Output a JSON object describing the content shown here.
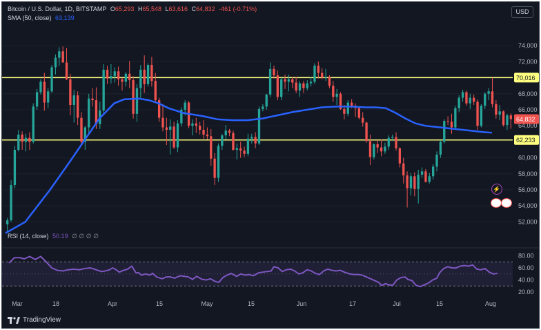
{
  "header": {
    "symbol": "Bitcoin / U.S. Dollar, 1D, BITSTAMP",
    "o_label": "O",
    "o_val": "65,293",
    "h_label": "H",
    "h_val": "65,548",
    "l_label": "L",
    "l_val": "63,616",
    "c_label": "C",
    "c_val": "64,832",
    "change": "-461 (-0.71%)",
    "sma_label": "SMA (50, close)",
    "sma_val": "63,139"
  },
  "currency": "USD",
  "rsi_header": {
    "label": "RSI (14, close)",
    "value": "50.19",
    "extra": "∅ ∅ ∅ ∅"
  },
  "brand": "TradingView",
  "colors": {
    "up": "#26a69a",
    "down": "#ef5350",
    "sma": "#2962ff",
    "rsi": "#7e57c2",
    "level": "#ffff7f",
    "bg": "#131722"
  },
  "chart_data": {
    "type": "candlestick",
    "ylim": [
      51000,
      76000
    ],
    "y_ticks": [
      "52,000",
      "54,000",
      "56,000",
      "58,000",
      "60,000",
      "62,000",
      "64,000",
      "66,000",
      "68,000",
      "70,000",
      "72,000",
      "74,000"
    ],
    "x_tick_labels": [
      "Mar",
      "18",
      "Apr",
      "15",
      "May",
      "15",
      "Jun",
      "17",
      "Jul",
      "15",
      "Aug"
    ],
    "hlines": [
      {
        "value": 70016,
        "label": "70,016"
      },
      {
        "value": 62233,
        "label": "62,233"
      }
    ],
    "last_price_label": "64,832",
    "candles": [
      [
        51700,
        52500,
        50800,
        52200
      ],
      [
        52200,
        57200,
        52000,
        56600
      ],
      [
        56600,
        61500,
        56200,
        61000
      ],
      [
        61000,
        63500,
        60800,
        62900
      ],
      [
        62900,
        63300,
        61000,
        62000
      ],
      [
        62000,
        63000,
        60800,
        62500
      ],
      [
        62500,
        63200,
        61000,
        62000
      ],
      [
        62000,
        66800,
        61800,
        66400
      ],
      [
        66400,
        68600,
        66000,
        68200
      ],
      [
        68200,
        69800,
        67900,
        69500
      ],
      [
        69500,
        70600,
        65900,
        66900
      ],
      [
        66900,
        68700,
        66200,
        68300
      ],
      [
        68300,
        71600,
        68100,
        71300
      ],
      [
        71300,
        72900,
        70400,
        72500
      ],
      [
        72500,
        73800,
        71500,
        73300
      ],
      [
        73300,
        73900,
        71900,
        71900
      ],
      [
        71900,
        73700,
        69700,
        69800
      ],
      [
        69800,
        70500,
        65300,
        66600
      ],
      [
        66600,
        68500,
        64400,
        67800
      ],
      [
        67800,
        68300,
        64100,
        65000
      ],
      [
        65000,
        65700,
        61500,
        62000
      ],
      [
        62000,
        64000,
        61000,
        63800
      ],
      [
        63800,
        68000,
        62900,
        67400
      ],
      [
        67400,
        68700,
        66400,
        67200
      ],
      [
        67200,
        68800,
        63600,
        64200
      ],
      [
        64200,
        67000,
        63600,
        65900
      ],
      [
        65900,
        71700,
        65500,
        71000
      ],
      [
        71000,
        71500,
        69200,
        69900
      ],
      [
        69900,
        71700,
        69300,
        70200
      ],
      [
        70200,
        71300,
        69400,
        70800
      ],
      [
        70800,
        71400,
        69000,
        69800
      ],
      [
        69800,
        70000,
        68400,
        69500
      ],
      [
        69500,
        70700,
        68900,
        70500
      ],
      [
        70500,
        72100,
        68700,
        69700
      ],
      [
        69700,
        70200,
        64900,
        65500
      ],
      [
        65500,
        69200,
        64500,
        68700
      ],
      [
        68700,
        71600,
        67500,
        71000
      ],
      [
        71000,
        72800,
        68100,
        69200
      ],
      [
        69200,
        71800,
        68900,
        71600
      ],
      [
        71600,
        72600,
        68900,
        69600
      ],
      [
        69600,
        70600,
        66900,
        67200
      ],
      [
        67200,
        67500,
        64500,
        65000
      ],
      [
        65000,
        66700,
        63300,
        63800
      ],
      [
        63800,
        65000,
        61600,
        63500
      ],
      [
        63500,
        64800,
        60400,
        63900
      ],
      [
        63900,
        64500,
        61100,
        61300
      ],
      [
        61300,
        64700,
        60700,
        64300
      ],
      [
        64300,
        66300,
        63900,
        66000
      ],
      [
        66000,
        67200,
        65300,
        66900
      ],
      [
        66900,
        67100,
        63700,
        64000
      ],
      [
        64000,
        64800,
        62800,
        64300
      ],
      [
        64300,
        65000,
        63100,
        64000
      ],
      [
        64000,
        64500,
        62900,
        63500
      ],
      [
        63500,
        64700,
        62400,
        62900
      ],
      [
        62900,
        63800,
        62300,
        62700
      ],
      [
        62700,
        63600,
        59000,
        59900
      ],
      [
        59900,
        60600,
        56600,
        57500
      ],
      [
        57500,
        61800,
        57000,
        61500
      ],
      [
        61500,
        63000,
        61000,
        62800
      ],
      [
        62800,
        64100,
        62300,
        63400
      ],
      [
        63400,
        63600,
        62700,
        63100
      ],
      [
        63100,
        63400,
        60900,
        61000
      ],
      [
        61000,
        61800,
        59800,
        61200
      ],
      [
        61200,
        62000,
        60000,
        60900
      ],
      [
        60900,
        61400,
        60100,
        60500
      ],
      [
        60500,
        63000,
        60200,
        62400
      ],
      [
        62400,
        63000,
        61800,
        62600
      ],
      [
        62600,
        63200,
        61200,
        61800
      ],
      [
        61800,
        66400,
        61600,
        66100
      ],
      [
        66100,
        66700,
        65800,
        66400
      ],
      [
        66400,
        68000,
        66000,
        67900
      ],
      [
        67900,
        71900,
        67600,
        71100
      ],
      [
        71100,
        71500,
        69900,
        70300
      ],
      [
        70300,
        70900,
        67200,
        67600
      ],
      [
        67600,
        70000,
        67200,
        69800
      ],
      [
        69800,
        70400,
        68600,
        69500
      ],
      [
        69500,
        70400,
        68300,
        69800
      ],
      [
        69800,
        70100,
        68700,
        69400
      ],
      [
        69400,
        70100,
        68100,
        68400
      ],
      [
        68400,
        69600,
        67600,
        69300
      ],
      [
        69300,
        69600,
        68100,
        68700
      ],
      [
        68700,
        69700,
        68400,
        69300
      ],
      [
        69300,
        70100,
        68900,
        69500
      ],
      [
        69500,
        71800,
        69200,
        71500
      ],
      [
        71500,
        72000,
        69900,
        70600
      ],
      [
        70600,
        71200,
        69800,
        70000
      ],
      [
        70000,
        71100,
        69600,
        70100
      ],
      [
        70100,
        70300,
        68700,
        69000
      ],
      [
        69000,
        69600,
        67000,
        67600
      ],
      [
        67600,
        68600,
        66600,
        68000
      ],
      [
        68000,
        68200,
        66000,
        66100
      ],
      [
        66100,
        66600,
        64800,
        65500
      ],
      [
        65500,
        67200,
        65200,
        66900
      ],
      [
        66900,
        67300,
        66200,
        66500
      ],
      [
        66500,
        66800,
        65100,
        66200
      ],
      [
        66200,
        66400,
        64800,
        65000
      ],
      [
        65000,
        65700,
        63900,
        64400
      ],
      [
        64400,
        64500,
        61900,
        62100
      ],
      [
        62100,
        62900,
        59100,
        60100
      ],
      [
        60100,
        61800,
        59800,
        61700
      ],
      [
        61700,
        62200,
        60600,
        61300
      ],
      [
        61300,
        62300,
        60200,
        60800
      ],
      [
        60800,
        61900,
        60500,
        61400
      ],
      [
        61400,
        62800,
        61000,
        62500
      ],
      [
        62500,
        62900,
        62100,
        62600
      ],
      [
        62600,
        63200,
        60900,
        61200
      ],
      [
        61200,
        61300,
        58800,
        59300
      ],
      [
        59300,
        60000,
        56800,
        57800
      ],
      [
        57800,
        58300,
        53800,
        56200
      ],
      [
        56200,
        58100,
        55300,
        57700
      ],
      [
        57700,
        58200,
        55200,
        56100
      ],
      [
        56100,
        58500,
        54300,
        57900
      ],
      [
        57900,
        58800,
        57500,
        58300
      ],
      [
        58300,
        58600,
        56900,
        57000
      ],
      [
        57000,
        58100,
        56800,
        57700
      ],
      [
        57700,
        59200,
        57300,
        58900
      ],
      [
        58900,
        60800,
        58300,
        60400
      ],
      [
        60400,
        62200,
        60000,
        62000
      ],
      [
        62000,
        64800,
        61800,
        64600
      ],
      [
        64600,
        65200,
        64100,
        64500
      ],
      [
        64500,
        65500,
        63000,
        63800
      ],
      [
        63800,
        66500,
        63500,
        66200
      ],
      [
        66200,
        67800,
        65700,
        67500
      ],
      [
        67500,
        68500,
        67000,
        68200
      ],
      [
        68200,
        68400,
        66500,
        66800
      ],
      [
        66800,
        68000,
        66100,
        67500
      ],
      [
        67500,
        67900,
        66600,
        67000
      ],
      [
        67000,
        67300,
        63500,
        64000
      ],
      [
        64000,
        66700,
        63800,
        66500
      ],
      [
        66500,
        68200,
        66100,
        68000
      ],
      [
        68000,
        68700,
        67200,
        68300
      ],
      [
        68300,
        70000,
        66300,
        66700
      ],
      [
        66700,
        67200,
        64900,
        65400
      ],
      [
        65400,
        66600,
        64700,
        65800
      ],
      [
        65800,
        65900,
        63900,
        64100
      ],
      [
        64100,
        65500,
        63500,
        65300
      ],
      [
        65300,
        65548,
        63616,
        64832
      ]
    ],
    "sma": [
      [
        0,
        50600
      ],
      [
        8,
        52000
      ],
      [
        18,
        56000
      ],
      [
        26,
        59500
      ],
      [
        32,
        62200
      ],
      [
        38,
        64900
      ],
      [
        44,
        66800
      ],
      [
        48,
        67300
      ],
      [
        54,
        67400
      ],
      [
        58,
        67200
      ],
      [
        62,
        66800
      ],
      [
        66,
        66200
      ],
      [
        72,
        65600
      ],
      [
        80,
        65200
      ],
      [
        86,
        64800
      ],
      [
        92,
        64700
      ],
      [
        98,
        64700
      ],
      [
        104,
        64900
      ],
      [
        110,
        65300
      ],
      [
        116,
        65700
      ],
      [
        122,
        66000
      ],
      [
        128,
        66300
      ],
      [
        134,
        66400
      ],
      [
        140,
        66400
      ],
      [
        146,
        66300
      ],
      [
        150,
        66300
      ],
      [
        154,
        66200
      ],
      [
        158,
        65600
      ],
      [
        162,
        64900
      ],
      [
        166,
        64300
      ],
      [
        170,
        64000
      ],
      [
        176,
        63800
      ],
      [
        182,
        63600
      ],
      [
        188,
        63400
      ],
      [
        194,
        63200
      ],
      [
        197,
        63139
      ]
    ],
    "rsi": {
      "ylim": [
        20,
        83
      ],
      "y_ticks": [
        "80.00",
        "60.00",
        "40.00",
        "20.00"
      ],
      "bands": [
        70,
        30
      ],
      "values": [
        [
          0,
          68
        ],
        [
          8,
          77
        ],
        [
          16,
          77
        ],
        [
          22,
          75
        ],
        [
          30,
          79
        ],
        [
          38,
          74
        ],
        [
          46,
          79
        ],
        [
          54,
          70
        ],
        [
          62,
          60
        ],
        [
          70,
          56
        ],
        [
          78,
          55
        ],
        [
          86,
          57
        ],
        [
          94,
          58
        ],
        [
          102,
          57
        ],
        [
          110,
          59
        ],
        [
          118,
          60
        ],
        [
          126,
          57
        ],
        [
          134,
          54
        ],
        [
          140,
          55
        ],
        [
          146,
          57
        ],
        [
          150,
          60
        ],
        [
          154,
          58
        ],
        [
          160,
          53
        ],
        [
          166,
          56
        ],
        [
          172,
          58
        ],
        [
          178,
          63
        ],
        [
          184,
          52
        ],
        [
          188,
          52
        ],
        [
          192,
          48
        ],
        [
          198,
          50
        ],
        [
          204,
          48
        ],
        [
          208,
          51
        ],
        [
          214,
          45
        ],
        [
          222,
          42
        ],
        [
          228,
          45
        ],
        [
          234,
          45
        ],
        [
          240,
          43
        ],
        [
          248,
          47
        ],
        [
          254,
          46
        ],
        [
          260,
          45
        ],
        [
          266,
          41
        ],
        [
          272,
          46
        ],
        [
          280,
          41
        ],
        [
          286,
          40
        ],
        [
          292,
          42
        ],
        [
          298,
          38
        ],
        [
          304,
          36
        ],
        [
          310,
          44
        ],
        [
          316,
          48
        ],
        [
          322,
          51
        ],
        [
          330,
          46
        ],
        [
          336,
          50
        ],
        [
          342,
          48
        ],
        [
          348,
          49
        ],
        [
          354,
          47
        ],
        [
          362,
          52
        ],
        [
          368,
          53
        ],
        [
          374,
          54
        ],
        [
          380,
          55
        ],
        [
          384,
          62
        ],
        [
          390,
          60
        ],
        [
          396,
          54
        ],
        [
          402,
          57
        ],
        [
          408,
          58
        ],
        [
          414,
          55
        ],
        [
          420,
          50
        ],
        [
          426,
          52
        ],
        [
          432,
          57
        ],
        [
          438,
          55
        ],
        [
          444,
          51
        ],
        [
          450,
          49
        ],
        [
          456,
          55
        ],
        [
          462,
          58
        ],
        [
          468,
          56
        ],
        [
          474,
          55
        ],
        [
          480,
          56
        ],
        [
          486,
          53
        ],
        [
          494,
          50
        ],
        [
          500,
          49
        ],
        [
          506,
          49
        ],
        [
          512,
          48
        ],
        [
          518,
          45
        ],
        [
          524,
          42
        ],
        [
          530,
          39
        ],
        [
          536,
          36
        ],
        [
          540,
          31
        ],
        [
          546,
          34
        ],
        [
          550,
          32
        ],
        [
          556,
          31
        ],
        [
          562,
          40
        ],
        [
          568,
          44
        ],
        [
          574,
          45
        ],
        [
          578,
          41
        ],
        [
          584,
          39
        ],
        [
          590,
          31
        ],
        [
          596,
          29
        ],
        [
          602,
          32
        ],
        [
          608,
          35
        ],
        [
          614,
          40
        ],
        [
          620,
          43
        ],
        [
          624,
          52
        ],
        [
          630,
          59
        ],
        [
          636,
          62
        ],
        [
          642,
          60
        ],
        [
          648,
          60
        ],
        [
          654,
          63
        ],
        [
          660,
          64
        ],
        [
          666,
          63
        ],
        [
          672,
          65
        ],
        [
          678,
          58
        ],
        [
          684,
          57
        ],
        [
          690,
          59
        ],
        [
          696,
          53
        ],
        [
          702,
          50
        ],
        [
          708,
          51
        ]
      ]
    }
  }
}
